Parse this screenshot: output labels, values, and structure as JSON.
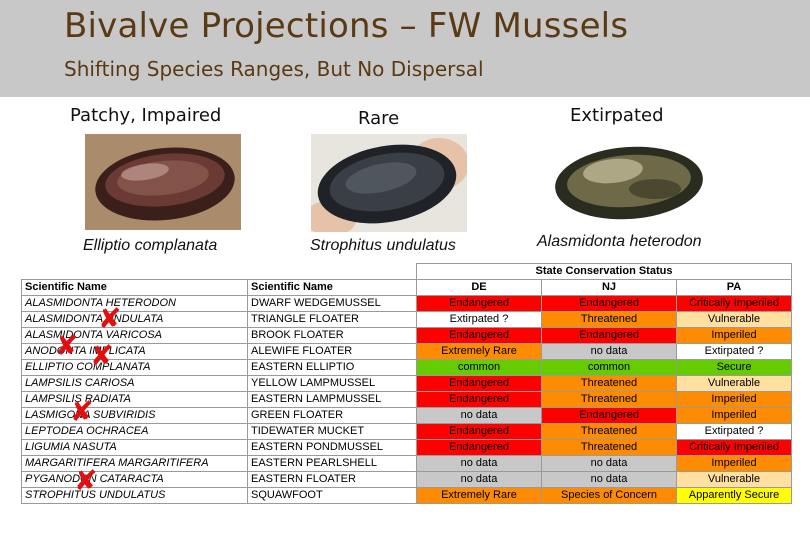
{
  "header": {
    "title": "Bivalve Projections – FW Mussels",
    "subtitle": "Shifting Species Ranges, But No Dispersal"
  },
  "categories": [
    {
      "label": "Patchy, Impaired",
      "species": "Elliptio complanata"
    },
    {
      "label": "Rare",
      "species": "Strophitus undulatus"
    },
    {
      "label": "Extirpated",
      "species": "Alasmidonta heterodon"
    }
  ],
  "table": {
    "group_header": "State Conservation Status",
    "columns": [
      "Scientific Name",
      "Scientific Name",
      "DE",
      "NJ",
      "PA"
    ],
    "status_colors": {
      "Endangered": "#ff0000",
      "Critically Imperiled": "#ff0000",
      "Threatened": "#ff8c00",
      "Imperiled": "#ff8c00",
      "Extremely Rare": "#ff8c00",
      "Species of Concern": "#ff8c00",
      "Extirpated ?": "#ffffff",
      "Vulnerable": "#ffe0a0",
      "common": "#66cc00",
      "Secure": "#66cc00",
      "Apparently Secure": "#ffff00",
      "no data": "#c8c8c8"
    },
    "rows": [
      {
        "sci": "ALASMIDONTA HETERODON",
        "common": "DWARF WEDGEMUSSEL",
        "de": "Endangered",
        "nj": "Endangered",
        "pa": "Critically Imperiled"
      },
      {
        "sci": "ALASMIDONTA UNDULATA",
        "common": "TRIANGLE FLOATER",
        "de": "Extirpated ?",
        "nj": "Threatened",
        "pa": "Vulnerable"
      },
      {
        "sci": "ALASMIDONTA VARICOSA",
        "common": "BROOK FLOATER",
        "de": "Endangered",
        "nj": "Endangered",
        "pa": "Imperiled"
      },
      {
        "sci": "ANODONTA IMPLICATA",
        "common": "ALEWIFE FLOATER",
        "de": "Extremely Rare",
        "nj": "no data",
        "pa": "Extirpated ?"
      },
      {
        "sci": "ELLIPTIO COMPLANATA",
        "common": "EASTERN ELLIPTIO",
        "de": "common",
        "nj": "common",
        "pa": "Secure"
      },
      {
        "sci": "LAMPSILIS CARIOSA",
        "common": "YELLOW LAMPMUSSEL",
        "de": "Endangered",
        "nj": "Threatened",
        "pa": "Vulnerable"
      },
      {
        "sci": "LAMPSILIS RADIATA",
        "common": "EASTERN LAMPMUSSEL",
        "de": "Endangered",
        "nj": "Threatened",
        "pa": "Imperiled"
      },
      {
        "sci": "LASMIGONA SUBVIRIDIS",
        "common": "GREEN FLOATER",
        "de": "no data",
        "nj": "Endangered",
        "pa": "Imperiled"
      },
      {
        "sci": "LEPTODEA OCHRACEA",
        "common": "TIDEWATER MUCKET",
        "de": "Endangered",
        "nj": "Threatened",
        "pa": "Extirpated ?"
      },
      {
        "sci": "LIGUMIA NASUTA",
        "common": "EASTERN PONDMUSSEL",
        "de": "Endangered",
        "nj": "Threatened",
        "pa": "Critically Imperiled"
      },
      {
        "sci": "MARGARITIFERA MARGARITIFERA",
        "common": "EASTERN PEARLSHELL",
        "de": "no data",
        "nj": "no data",
        "pa": "Imperiled"
      },
      {
        "sci": "PYGANODON CATARACTA",
        "common": "EASTERN FLOATER",
        "de": "no data",
        "nj": "no data",
        "pa": "Vulnerable"
      },
      {
        "sci": "STROPHITUS UNDULATUS",
        "common": "SQUAWFOOT",
        "de": "Extremely Rare",
        "nj": "Species of Concern",
        "pa": "Apparently Secure"
      }
    ]
  },
  "x_marks": {
    "symbol": "✘",
    "color": "#e01010"
  }
}
